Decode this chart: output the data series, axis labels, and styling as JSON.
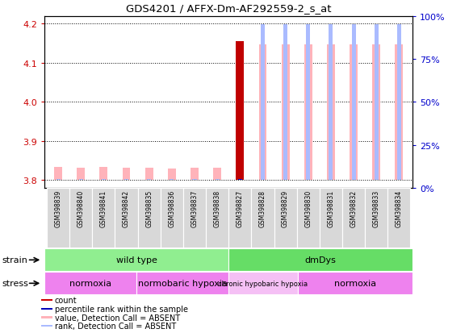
{
  "title": "GDS4201 / AFFX-Dm-AF292559-2_s_at",
  "samples": [
    "GSM398839",
    "GSM398840",
    "GSM398841",
    "GSM398842",
    "GSM398835",
    "GSM398836",
    "GSM398837",
    "GSM398838",
    "GSM398827",
    "GSM398828",
    "GSM398829",
    "GSM398830",
    "GSM398831",
    "GSM398832",
    "GSM398833",
    "GSM398834"
  ],
  "values": [
    3.833,
    3.831,
    3.833,
    3.832,
    3.832,
    3.83,
    3.832,
    3.832,
    4.155,
    4.148,
    4.148,
    4.148,
    4.148,
    4.148,
    4.148,
    4.148
  ],
  "ranks_pct": [
    2,
    2,
    2,
    2,
    2,
    2,
    2,
    2,
    2,
    95,
    95,
    95,
    95,
    95,
    95,
    95
  ],
  "value_colors": [
    "#ffb3ba",
    "#ffb3ba",
    "#ffb3ba",
    "#ffb3ba",
    "#ffb3ba",
    "#ffb3ba",
    "#ffb3ba",
    "#ffb3ba",
    "#c00000",
    "#ffb3ba",
    "#ffb3ba",
    "#ffb3ba",
    "#ffb3ba",
    "#ffb3ba",
    "#ffb3ba",
    "#ffb3ba"
  ],
  "rank_colors": [
    "#aabbff",
    "#aabbff",
    "#aabbff",
    "#aabbff",
    "#aabbff",
    "#aabbff",
    "#aabbff",
    "#aabbff",
    "#0000cc",
    "#aabbff",
    "#aabbff",
    "#aabbff",
    "#aabbff",
    "#aabbff",
    "#aabbff",
    "#aabbff"
  ],
  "ylim_left": [
    3.78,
    4.22
  ],
  "ylim_right": [
    0,
    100
  ],
  "yticks_left": [
    3.8,
    3.9,
    4.0,
    4.1,
    4.2
  ],
  "yticks_right": [
    0,
    25,
    50,
    75,
    100
  ],
  "ytick_labels_right": [
    "0%",
    "25%",
    "50%",
    "75%",
    "100%"
  ],
  "strain_groups": [
    {
      "label": "wild type",
      "start": 0,
      "end": 8,
      "color": "#90ee90"
    },
    {
      "label": "dmDys",
      "start": 8,
      "end": 16,
      "color": "#66dd66"
    }
  ],
  "stress_groups": [
    {
      "label": "normoxia",
      "start": 0,
      "end": 4,
      "color": "#ee82ee"
    },
    {
      "label": "normobaric hypoxia",
      "start": 4,
      "end": 8,
      "color": "#ee82ee"
    },
    {
      "label": "chronic hypobaric hypoxia",
      "start": 8,
      "end": 11,
      "color": "#f5c0f5"
    },
    {
      "label": "normoxia",
      "start": 11,
      "end": 16,
      "color": "#ee82ee"
    }
  ],
  "legend_items": [
    {
      "color": "#cc0000",
      "label": "count"
    },
    {
      "color": "#0000bb",
      "label": "percentile rank within the sample"
    },
    {
      "color": "#ffb3ba",
      "label": "value, Detection Call = ABSENT"
    },
    {
      "color": "#aabbff",
      "label": "rank, Detection Call = ABSENT"
    }
  ],
  "bar_width": 0.35,
  "rank_bar_width": 0.18,
  "bar_bottom": 3.8,
  "background_color": "#ffffff",
  "plot_bg_color": "#ffffff",
  "tick_label_color_left": "#cc0000",
  "tick_label_color_right": "#0000cc"
}
